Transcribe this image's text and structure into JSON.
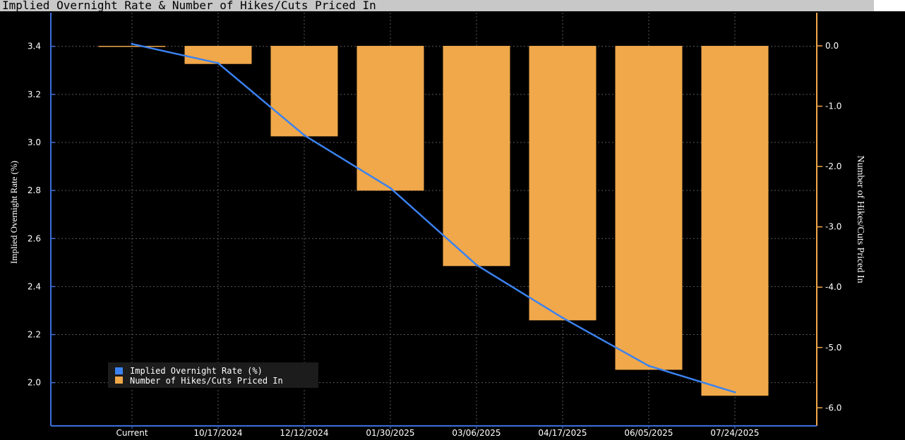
{
  "chart_data": {
    "type": "bar",
    "title": "Implied Overnight Rate & Number of Hikes/Cuts Priced In",
    "categories": [
      "Current",
      "10/17/2024",
      "12/12/2024",
      "01/30/2025",
      "03/06/2025",
      "04/17/2025",
      "06/05/2025",
      "07/24/2025"
    ],
    "ylabel_left": "Implied Overnight Rate (%)",
    "ylabel_right": "Number of Hikes/Cuts Priced In",
    "ylim_left": [
      1.82,
      3.54
    ],
    "ylim_right": [
      -6.3,
      0.55
    ],
    "yticks_left": [
      "2.0",
      "2.2",
      "2.4",
      "2.6",
      "2.8",
      "3.0",
      "3.2",
      "3.4"
    ],
    "yticks_right": [
      "0.0",
      "-1.0",
      "-2.0",
      "-3.0",
      "-4.0",
      "-5.0",
      "-6.0"
    ],
    "series": [
      {
        "name": "Implied Overnight Rate (%)",
        "type": "line",
        "axis": "left",
        "color": "#3b82f0",
        "values": [
          3.41,
          3.33,
          3.03,
          2.81,
          2.49,
          2.27,
          2.07,
          1.96
        ]
      },
      {
        "name": "Number of Hikes/Cuts Priced In",
        "type": "bar",
        "axis": "right",
        "color": "#f0a84a",
        "values": [
          0.0,
          -0.3,
          -1.5,
          -2.4,
          -3.65,
          -4.55,
          -5.37,
          -5.8
        ]
      }
    ],
    "grid": true,
    "legend_position": "bottom-left"
  }
}
